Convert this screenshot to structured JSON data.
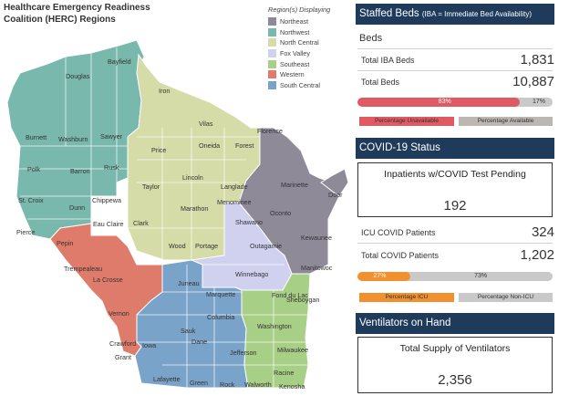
{
  "title": "Healthcare Emergency Readiness Coalition (HERC) Regions",
  "legend": {
    "header": "Region(s) Displaying",
    "items": [
      {
        "label": "Northeast",
        "color": "#8e8a98"
      },
      {
        "label": "Northwest",
        "color": "#79b8ad"
      },
      {
        "label": "North Central",
        "color": "#d5dca7"
      },
      {
        "label": "Fox Valley",
        "color": "#cfd1ef"
      },
      {
        "label": "Southeast",
        "color": "#a8cf86"
      },
      {
        "label": "Western",
        "color": "#df7b6b"
      },
      {
        "label": "South Central",
        "color": "#7aa3c9"
      }
    ]
  },
  "counties": [
    "Douglas",
    "Bayfield",
    "Iron",
    "Vilas",
    "Florence",
    "Burnett",
    "Washburn",
    "Sawyer",
    "Price",
    "Oneida",
    "Forest",
    "Polk",
    "Barron",
    "Rusk",
    "Lincoln",
    "Langlade",
    "Marinette",
    "Taylor",
    "Door",
    "St. Croix",
    "Dunn",
    "Chippewa",
    "Menominee",
    "Oconto",
    "Eau Claire",
    "Clark",
    "Marathon",
    "Shawano",
    "Pierce",
    "Pepin",
    "Kewaunee",
    "Outagamie",
    "Wood",
    "Portage",
    "Trempealeau",
    "Winnebago",
    "Manitowoc",
    "La Crosse",
    "Juneau",
    "Marquette",
    "Fond du Lac",
    "Sheboygan",
    "Columbia",
    "Vernon",
    "Washington",
    "Sauk",
    "Dane",
    "Crawford",
    "Iowa",
    "Milwaukee",
    "Grant",
    "Jefferson",
    "Racine",
    "Lafayette",
    "Green",
    "Rock",
    "Walworth",
    "Kenosha"
  ],
  "staffed_beds": {
    "header": "Staffed Beds",
    "header_note": "(IBA = Immediate Bed Availability)",
    "section_label": "Beds",
    "total_iba_label": "Total IBA Beds",
    "total_iba_value": "1,831",
    "total_beds_label": "Total Beds",
    "total_beds_value": "10,887",
    "bar": {
      "unavailable_pct": 83,
      "available_pct": 17,
      "unavailable_text": "83%",
      "available_text": "17%",
      "unavailable_color": "#e05a64",
      "available_color": "#c9c9c9"
    },
    "legend_unavailable": "Percentage Unavailable",
    "legend_available": "Percentage Available"
  },
  "covid": {
    "header": "COVID-19 Status",
    "pending_title": "Inpatients w/COVID Test Pending",
    "pending_value": "192",
    "icu_label": "ICU COVID Patients",
    "icu_value": "324",
    "total_label": "Total COVID Patients",
    "total_value": "1,202",
    "bar": {
      "icu_pct": 27,
      "non_icu_pct": 73,
      "icu_text": "27%",
      "non_icu_text": "73%",
      "icu_color": "#f0902e",
      "non_icu_color": "#c9c9c9"
    },
    "legend_icu": "Percentage ICU",
    "legend_non_icu": "Percentage Non-ICU"
  },
  "ventilators": {
    "header": "Ventilators on Hand",
    "box_title": "Total Supply of Ventilators",
    "box_value": "2,356"
  }
}
